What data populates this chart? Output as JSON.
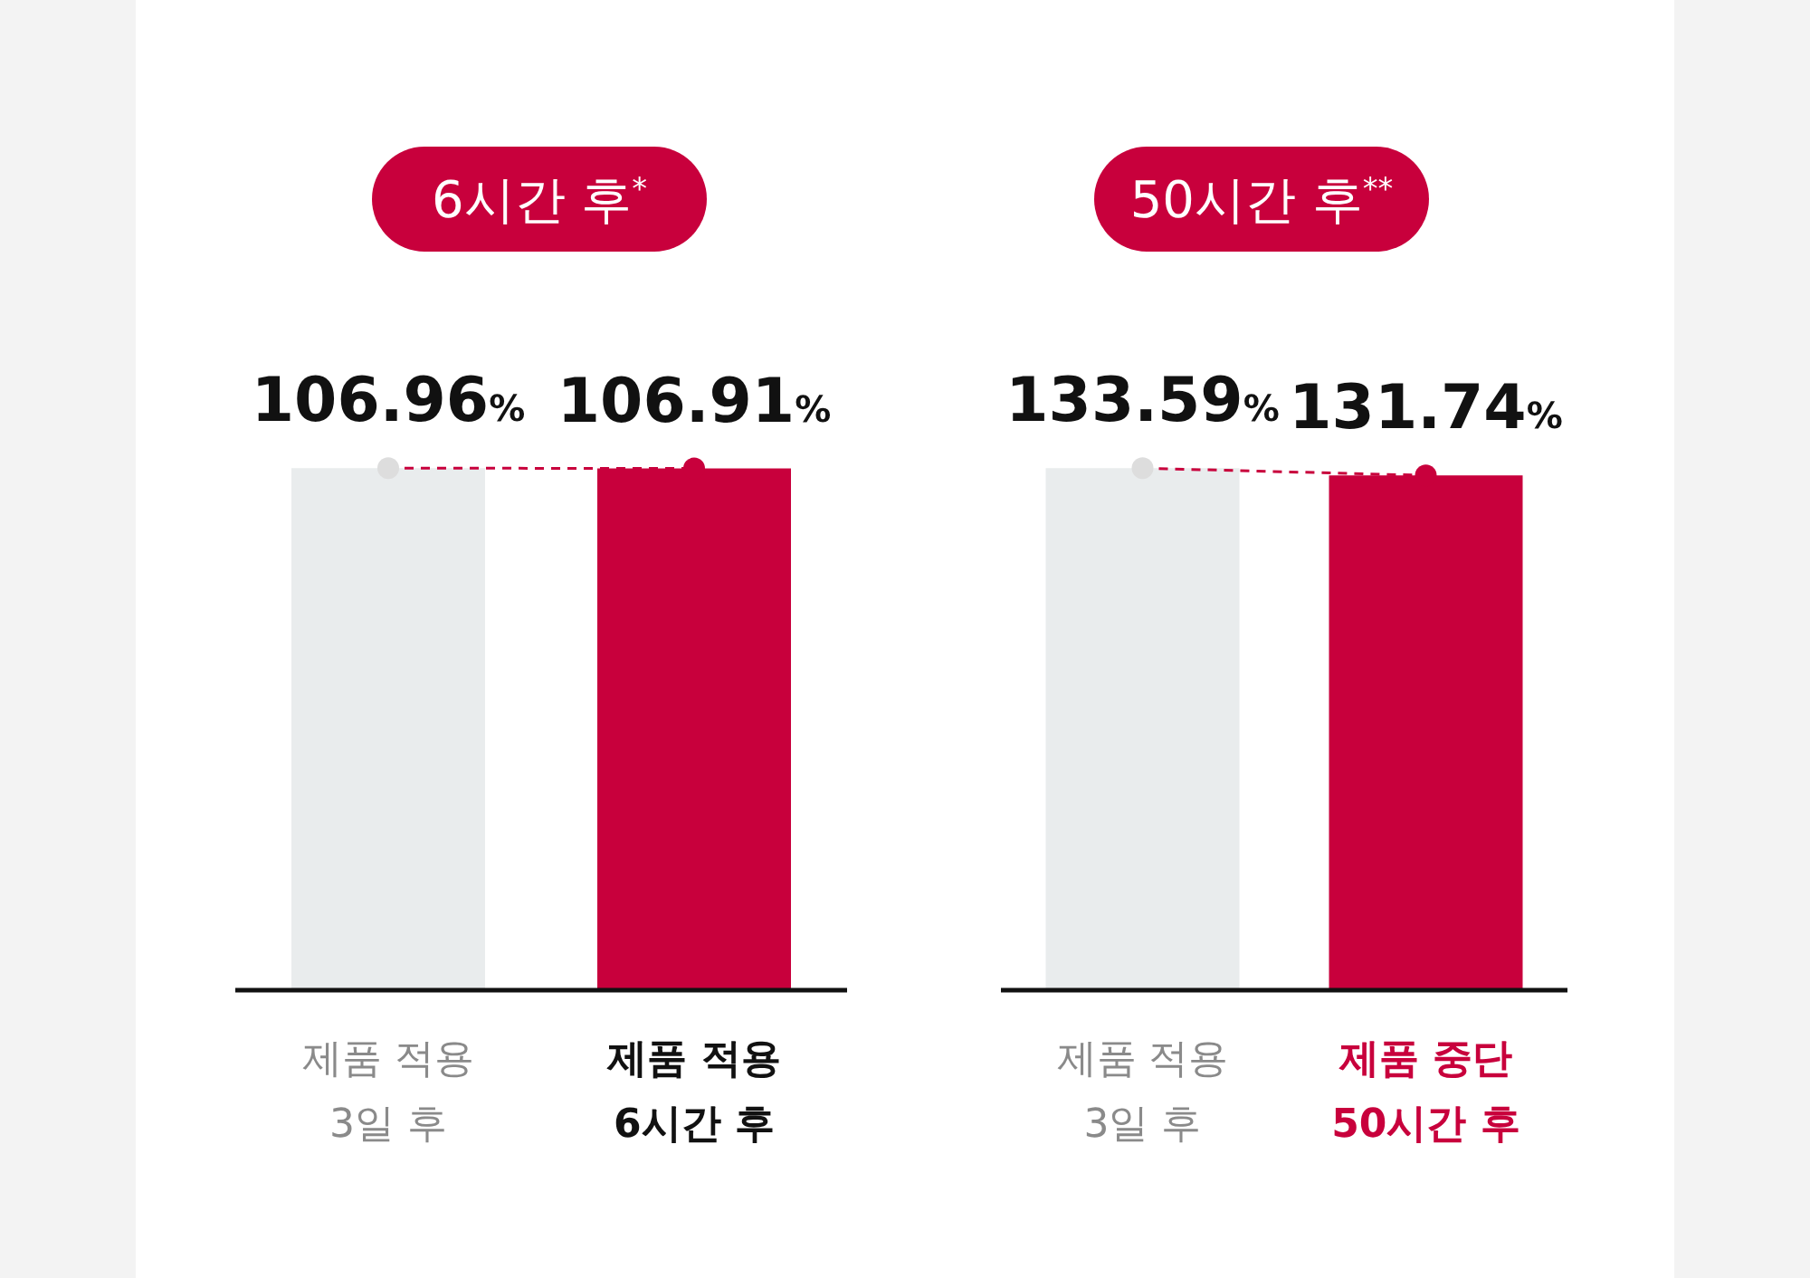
{
  "chart_data": [
    {
      "type": "bar",
      "title": "6시간 후$^{*}$",
      "categories": [
        "제품 적용\n3일 후",
        "제품 적용\n6시간 후"
      ],
      "tick_labels": "x",
      "series": [
        {
          "type": "bar",
          "colors": [
            "#e9eced",
            "#c8003c"
          ],
          "values": [
            106.96,
            106.91
          ]
        },
        {
          "type": "line",
          "colors": [
            "#dddddd",
            "#c8003c"
          ],
          "color": "#c8003c",
          "line_style": "dashed",
          "marker": "circle",
          "values": [
            106.96,
            106.91
          ],
          "value_labels": [
            "106.96%",
            "106.91%"
          ]
        }
      ]
    },
    {
      "type": "bar",
      "title": "50시간 후$^{**}$",
      "categories": [
        "제품 적용\n3일 후",
        "제품 중단\n50시간 후"
      ],
      "tick_labels": "x",
      "series": [
        {
          "type": "bar",
          "colors": [
            "#e9eced",
            "#c8003c"
          ],
          "values": [
            133.59,
            131.74
          ]
        },
        {
          "type": "line",
          "colors": [
            "#dddddd",
            "#c8003c"
          ],
          "color": "#c8003c",
          "line_style": "dashed",
          "marker": "circle",
          "values": [
            133.59,
            131.74
          ],
          "value_labels": [
            "133.59%",
            "131.74%"
          ]
        }
      ]
    }
  ]
}
